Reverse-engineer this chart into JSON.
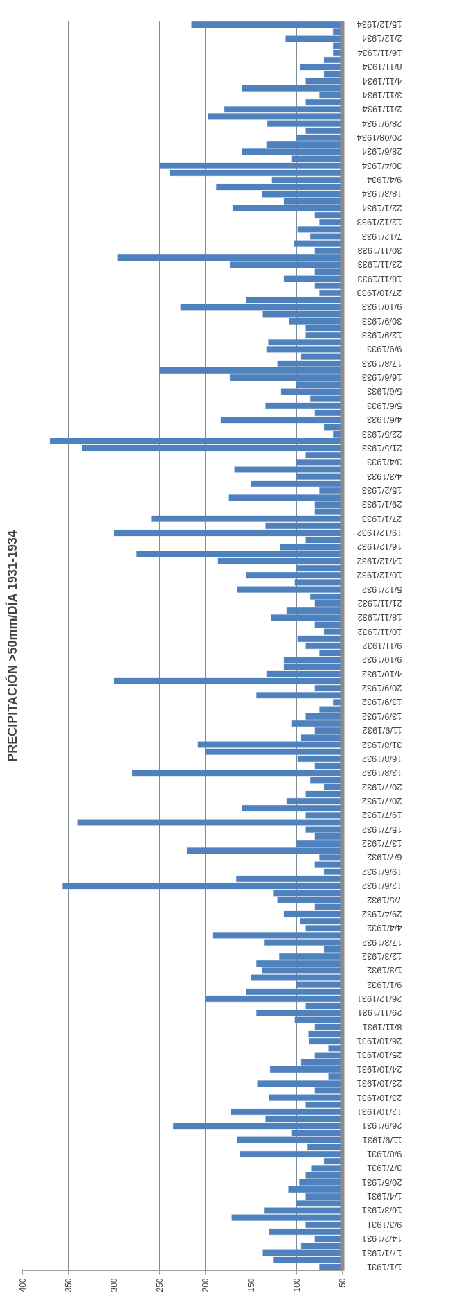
{
  "chart_data": {
    "type": "bar",
    "orientation": "horizontal",
    "title": "PRECIPITACIÓN >50mm/DÍA 1931-1934",
    "categories": [
      "15/12/1934",
      null,
      "2/12/1934",
      null,
      "16/11/1934",
      null,
      "8/11/1934",
      null,
      "4/11/1934",
      null,
      "3/11/1934",
      null,
      "2/11/1934",
      null,
      "28/9/1934",
      null,
      "20/08/1934",
      null,
      "28/6/1934",
      null,
      "30/4/1934",
      null,
      "9/4/1934",
      null,
      "18/3/1934",
      null,
      "22/1/1934",
      null,
      "12/12/1933",
      null,
      "7/12/1933",
      null,
      "30/11/1933",
      null,
      "23/11/1933",
      null,
      "18/11/1933",
      null,
      "27/10/1933",
      null,
      "9/10/1933",
      null,
      "30/9/1933",
      null,
      "12/9/1933",
      null,
      "9/9/1933",
      null,
      "17/8/1933",
      null,
      "16/6/1933",
      null,
      "5/6/1933",
      null,
      "5/6/1933",
      null,
      "4/6/1933",
      null,
      "22/5/1933",
      null,
      "21/5/1933",
      null,
      "3/4/1933",
      null,
      "4/3/1933",
      null,
      "15/2/1933",
      null,
      "29/1/1933",
      null,
      "27/1/1933",
      null,
      "19/12/1932",
      null,
      "16/12/1932",
      null,
      "14/12/1932",
      null,
      "10/12/1932",
      null,
      "5/12/1932",
      null,
      "21/11/1932",
      null,
      "18/11/1932",
      null,
      "10/11/1932",
      null,
      "9/11/1932",
      null,
      "9/10/1932",
      null,
      "4/10/1932",
      null,
      "20/9/1932",
      null,
      "13/9/1932",
      null,
      "13/9/1932",
      null,
      "11/9/1932",
      null,
      "31/8/1932",
      null,
      "16/8/1932",
      null,
      "13/8/1932",
      null,
      "20/7/1932",
      null,
      "20/7/1932",
      null,
      "19/7/1932",
      null,
      "15/7/1932",
      null,
      "13/7/1932",
      null,
      "6/7/1932",
      null,
      "19/6/1932",
      null,
      "12/6/1932",
      null,
      "7/5/1932",
      null,
      "29/4/1932",
      null,
      "4/4/1932",
      null,
      "17/3/1932",
      null,
      "12/3/1932",
      null,
      "1/3/1932",
      null,
      "9/1/1932",
      null,
      "26/12/1931",
      null,
      "29/11/1931",
      null,
      "8/11/1931",
      null,
      "26/10/1931",
      null,
      "25/10/1931",
      null,
      "24/10/1931",
      null,
      "23/10/1931",
      null,
      "23/10/1931",
      null,
      "12/10/1931",
      null,
      "26/9/1931",
      null,
      "11/9/1931",
      null,
      "9/8/1931",
      null,
      "3/7/1931",
      null,
      "20/5/1931",
      null,
      "1/4/1931",
      null,
      "16/3/1931",
      null,
      "9/3/1931",
      null,
      "14/2/1931",
      null,
      "17/1/1931",
      null,
      "1/1/1931"
    ],
    "values": [
      215,
      60,
      112,
      60,
      60,
      70,
      96,
      70,
      90,
      160,
      75,
      90,
      179,
      197,
      132,
      90,
      100,
      133,
      160,
      105,
      250,
      239,
      127,
      188,
      138,
      114,
      170,
      80,
      75,
      99,
      85,
      103,
      80,
      296,
      173,
      80,
      114,
      80,
      75,
      155,
      227,
      137,
      108,
      90,
      90,
      131,
      133,
      95,
      121,
      250,
      173,
      100,
      117,
      85,
      134,
      80,
      183,
      70,
      60,
      370,
      335,
      90,
      100,
      168,
      100,
      150,
      75,
      174,
      80,
      80,
      259,
      134,
      300,
      90,
      118,
      275,
      186,
      100,
      155,
      102,
      165,
      85,
      80,
      111,
      128,
      80,
      70,
      99,
      90,
      75,
      114,
      114,
      133,
      300,
      80,
      144,
      60,
      75,
      90,
      105,
      80,
      95,
      208,
      200,
      99,
      80,
      280,
      85,
      70,
      90,
      111,
      160,
      90,
      340,
      90,
      80,
      100,
      220,
      75,
      80,
      70,
      166,
      356,
      125,
      121,
      80,
      114,
      96,
      90,
      192,
      135,
      70,
      119,
      144,
      138,
      150,
      100,
      155,
      200,
      90,
      144,
      102,
      80,
      87,
      86,
      65,
      80,
      95,
      129,
      65,
      143,
      80,
      130,
      90,
      172,
      134,
      235,
      105,
      165,
      88,
      162,
      70,
      84,
      90,
      97,
      109,
      90,
      100,
      135,
      171,
      90,
      130,
      80,
      95,
      137,
      125,
      75
    ],
    "color": "#4f81bd",
    "xlim": [
      400,
      50
    ],
    "xticks": [
      50,
      100,
      150,
      200,
      250,
      300,
      350,
      400
    ],
    "grid": "x"
  }
}
